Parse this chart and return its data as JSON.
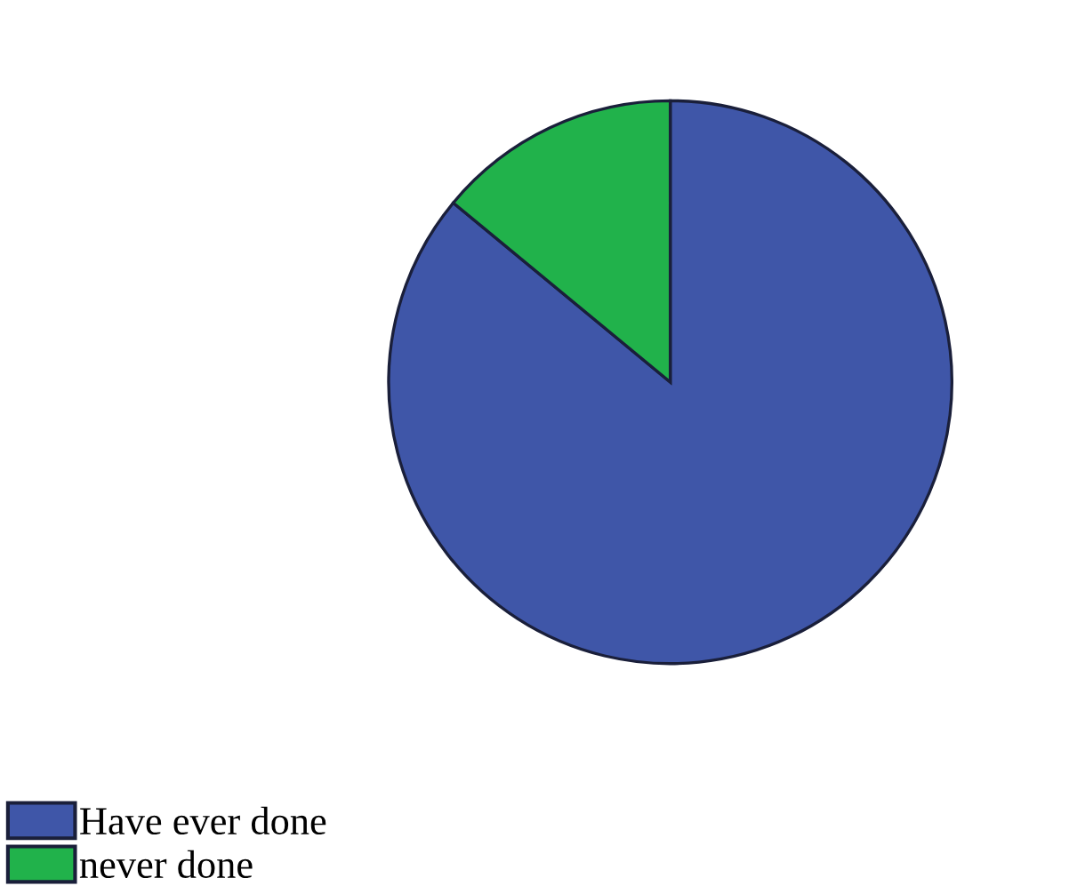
{
  "chart_data": {
    "type": "pie",
    "categories": [
      "Have ever done",
      "never done"
    ],
    "values": [
      86,
      14
    ],
    "colors": [
      "#3f56a8",
      "#21b24b"
    ],
    "legend": "bottom left"
  }
}
